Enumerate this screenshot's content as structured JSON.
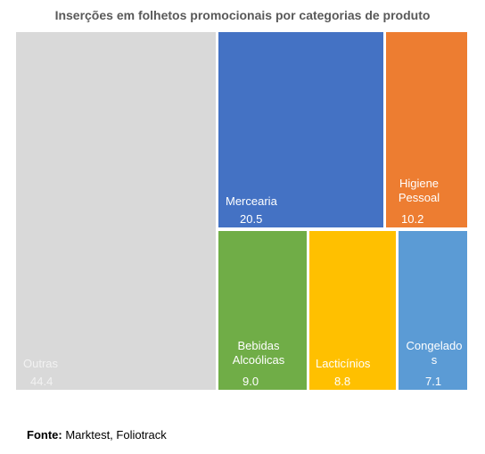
{
  "chart_data": {
    "type": "treemap",
    "title": "Inserções em folhetos promocionais por categorias de produto",
    "items": [
      {
        "name_lines": [
          "Outras"
        ],
        "value": "44.4",
        "color": "#d9d9d9"
      },
      {
        "name_lines": [
          "Mercearia"
        ],
        "value": "20.5",
        "color": "#4472c4"
      },
      {
        "name_lines": [
          "Higiene",
          "Pessoal"
        ],
        "value": "10.2",
        "color": "#ed7d31"
      },
      {
        "name_lines": [
          "Bebidas",
          "Alcoólicas"
        ],
        "value": "9.0",
        "color": "#70ad47"
      },
      {
        "name_lines": [
          "Lacticínios"
        ],
        "value": "8.8",
        "color": "#ffc000"
      },
      {
        "name_lines": [
          "Congelado",
          "s"
        ],
        "value": "7.1",
        "color": "#5b9bd5"
      }
    ]
  },
  "source": {
    "label": "Fonte:",
    "text": "Marktest, Foliotrack"
  }
}
